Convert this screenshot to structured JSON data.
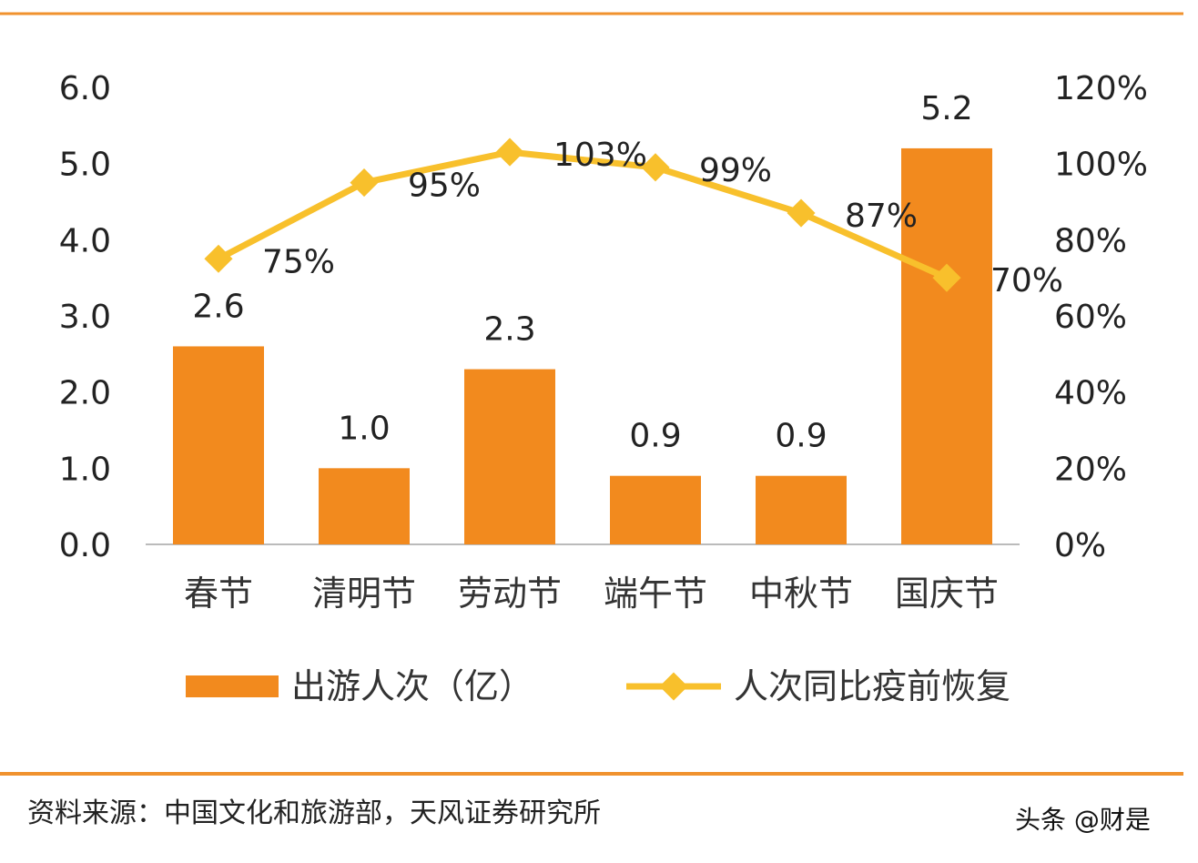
{
  "chart_data": {
    "type": "bar+line",
    "categories": [
      "春节",
      "清明节",
      "劳动节",
      "端午节",
      "中秋节",
      "国庆节"
    ],
    "series": [
      {
        "name": "出游人次（亿）",
        "type": "bar",
        "axis": "left",
        "values": [
          2.6,
          1.0,
          2.3,
          0.9,
          0.9,
          5.2
        ],
        "labels": [
          "2.6",
          "1.0",
          "2.3",
          "0.9",
          "0.9",
          "5.2"
        ],
        "color": "#F28A1E"
      },
      {
        "name": "人次同比疫前恢复",
        "type": "line",
        "axis": "right",
        "values": [
          75,
          95,
          103,
          99,
          87,
          70
        ],
        "labels": [
          "75%",
          "95%",
          "103%",
          "99%",
          "87%",
          "70%"
        ],
        "color": "#F8C02C"
      }
    ],
    "ylim_left": [
      0,
      6
    ],
    "yticks_left": [
      "0.0",
      "1.0",
      "2.0",
      "3.0",
      "4.0",
      "5.0",
      "6.0"
    ],
    "ylim_right": [
      0,
      120
    ],
    "yticks_right": [
      "0%",
      "20%",
      "40%",
      "60%",
      "80%",
      "100%",
      "120%"
    ],
    "grid": false,
    "legend": "bottom"
  },
  "source": "资料来源：中国文化和旅游部，天风证券研究所",
  "watermark": "头条 @财是",
  "frame_color": "#F0922E"
}
